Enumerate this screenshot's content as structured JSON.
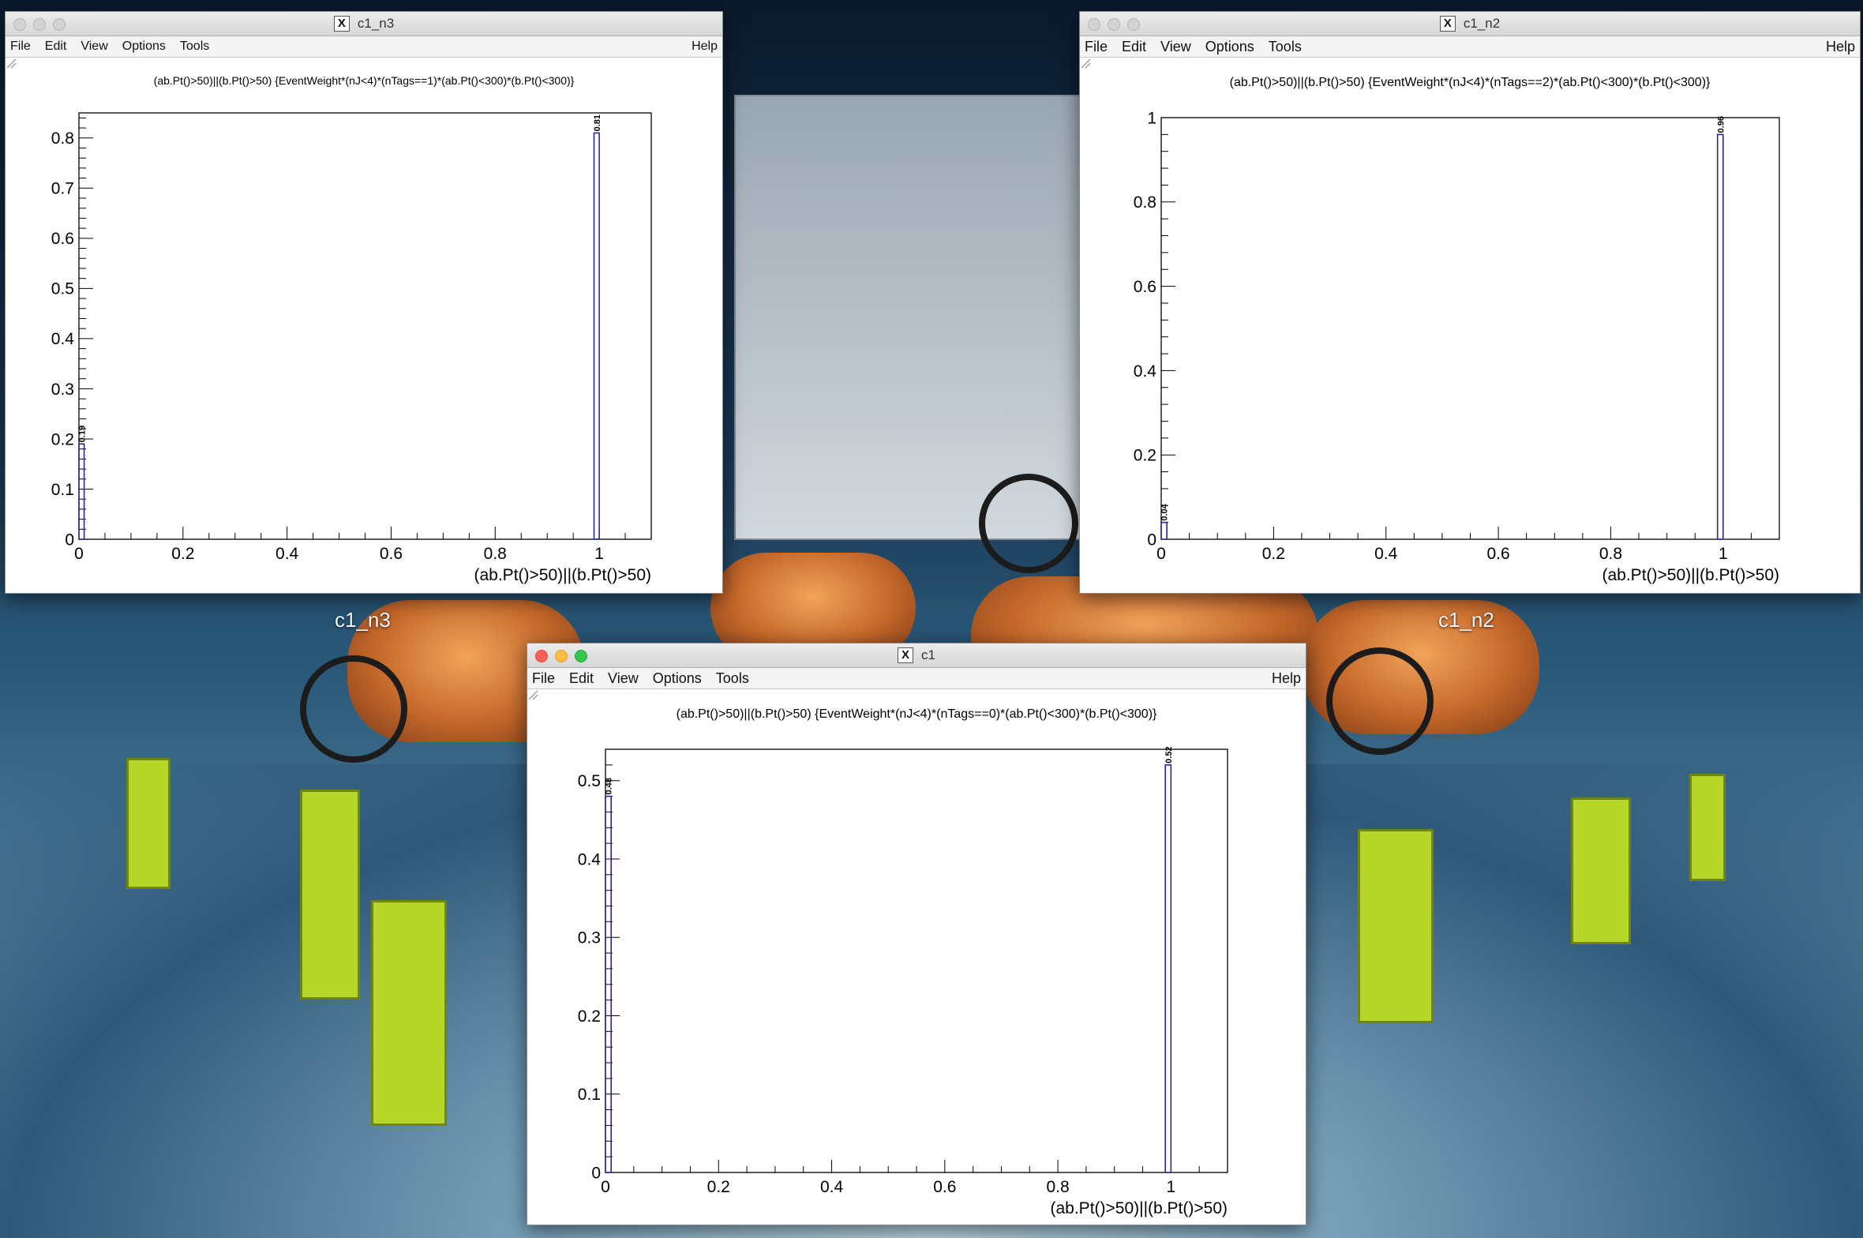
{
  "desktop": {
    "labels": [
      "c1_n3",
      "c1_n2"
    ]
  },
  "colors": {
    "histogram_line": "#2a2a8a",
    "frame": "#000000"
  },
  "windows": [
    {
      "id": "c1_n3",
      "title": "c1_n3",
      "active": false,
      "menu": [
        "File",
        "Edit",
        "View",
        "Options",
        "Tools"
      ],
      "help": "Help",
      "plot_title": "(ab.Pt()>50)||(b.Pt()>50) {EventWeight*(nJ<4)*(nTags==1)*(ab.Pt()<300)*(b.Pt()<300)}",
      "xlabel": "(ab.Pt()>50)||(b.Pt()>50)"
    },
    {
      "id": "c1_n2",
      "title": "c1_n2",
      "active": false,
      "menu": [
        "File",
        "Edit",
        "View",
        "Options",
        "Tools"
      ],
      "help": "Help",
      "plot_title": "(ab.Pt()>50)||(b.Pt()>50) {EventWeight*(nJ<4)*(nTags==2)*(ab.Pt()<300)*(b.Pt()<300)}",
      "xlabel": "(ab.Pt()>50)||(b.Pt()>50)"
    },
    {
      "id": "c1",
      "title": "c1",
      "active": true,
      "menu": [
        "File",
        "Edit",
        "View",
        "Options",
        "Tools"
      ],
      "help": "Help",
      "plot_title": "(ab.Pt()>50)||(b.Pt()>50) {EventWeight*(nJ<4)*(nTags==0)*(ab.Pt()<300)*(b.Pt()<300)}",
      "xlabel": "(ab.Pt()>50)||(b.Pt()>50)"
    }
  ],
  "chart_data": [
    {
      "type": "bar",
      "window": "c1_n3",
      "x": [
        0,
        1
      ],
      "values": [
        0.19,
        0.81
      ],
      "bar_labels": [
        "0.19",
        "0.81"
      ],
      "xlim": [
        0,
        1.1
      ],
      "ylim": [
        0,
        0.85
      ],
      "xticks": [
        0,
        0.2,
        0.4,
        0.6,
        0.8,
        1
      ],
      "xtick_labels": [
        "0",
        "0.2",
        "0.4",
        "0.6",
        "0.8",
        "1"
      ],
      "yticks": [
        0,
        0.1,
        0.2,
        0.3,
        0.4,
        0.5,
        0.6,
        0.7,
        0.8
      ],
      "ytick_labels": [
        "0",
        "0.1",
        "0.2",
        "0.3",
        "0.4",
        "0.5",
        "0.6",
        "0.7",
        "0.8"
      ],
      "xlabel": "(ab.Pt()>50)||(b.Pt()>50)"
    },
    {
      "type": "bar",
      "window": "c1_n2",
      "x": [
        0,
        1
      ],
      "values": [
        0.04,
        0.96
      ],
      "bar_labels": [
        "0.04",
        "0.96"
      ],
      "xlim": [
        0,
        1.1
      ],
      "ylim": [
        0,
        1.0
      ],
      "xticks": [
        0,
        0.2,
        0.4,
        0.6,
        0.8,
        1
      ],
      "xtick_labels": [
        "0",
        "0.2",
        "0.4",
        "0.6",
        "0.8",
        "1"
      ],
      "yticks": [
        0,
        0.2,
        0.4,
        0.6,
        0.8,
        1
      ],
      "ytick_labels": [
        "0",
        "0.2",
        "0.4",
        "0.6",
        "0.8",
        "1"
      ],
      "xlabel": "(ab.Pt()>50)||(b.Pt()>50)"
    },
    {
      "type": "bar",
      "window": "c1",
      "x": [
        0,
        1
      ],
      "values": [
        0.48,
        0.52
      ],
      "bar_labels": [
        "0.48",
        "0.52"
      ],
      "xlim": [
        0,
        1.1
      ],
      "ylim": [
        0,
        0.54
      ],
      "xticks": [
        0,
        0.2,
        0.4,
        0.6,
        0.8,
        1
      ],
      "xtick_labels": [
        "0",
        "0.2",
        "0.4",
        "0.6",
        "0.8",
        "1"
      ],
      "yticks": [
        0,
        0.1,
        0.2,
        0.3,
        0.4,
        0.5
      ],
      "ytick_labels": [
        "0",
        "0.1",
        "0.2",
        "0.3",
        "0.4",
        "0.5"
      ],
      "xlabel": "(ab.Pt()>50)||(b.Pt()>50)"
    }
  ]
}
